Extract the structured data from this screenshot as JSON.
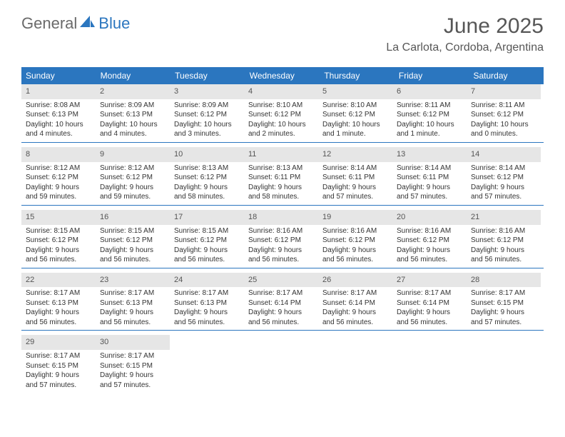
{
  "logo": {
    "part1": "General",
    "part2": "Blue"
  },
  "title": "June 2025",
  "location": "La Carlota, Cordoba, Argentina",
  "colors": {
    "header_bg": "#2b76bf",
    "daynum_bg": "#e6e6e6",
    "text": "#333333",
    "title_text": "#575757"
  },
  "day_labels": [
    "Sunday",
    "Monday",
    "Tuesday",
    "Wednesday",
    "Thursday",
    "Friday",
    "Saturday"
  ],
  "labels": {
    "sunrise": "Sunrise:",
    "sunset": "Sunset:",
    "daylight": "Daylight:"
  },
  "days": [
    {
      "n": "1",
      "sr": "8:08 AM",
      "ss": "6:13 PM",
      "dl1": "10 hours",
      "dl2": "and 4 minutes."
    },
    {
      "n": "2",
      "sr": "8:09 AM",
      "ss": "6:13 PM",
      "dl1": "10 hours",
      "dl2": "and 4 minutes."
    },
    {
      "n": "3",
      "sr": "8:09 AM",
      "ss": "6:12 PM",
      "dl1": "10 hours",
      "dl2": "and 3 minutes."
    },
    {
      "n": "4",
      "sr": "8:10 AM",
      "ss": "6:12 PM",
      "dl1": "10 hours",
      "dl2": "and 2 minutes."
    },
    {
      "n": "5",
      "sr": "8:10 AM",
      "ss": "6:12 PM",
      "dl1": "10 hours",
      "dl2": "and 1 minute."
    },
    {
      "n": "6",
      "sr": "8:11 AM",
      "ss": "6:12 PM",
      "dl1": "10 hours",
      "dl2": "and 1 minute."
    },
    {
      "n": "7",
      "sr": "8:11 AM",
      "ss": "6:12 PM",
      "dl1": "10 hours",
      "dl2": "and 0 minutes."
    },
    {
      "n": "8",
      "sr": "8:12 AM",
      "ss": "6:12 PM",
      "dl1": "9 hours",
      "dl2": "and 59 minutes."
    },
    {
      "n": "9",
      "sr": "8:12 AM",
      "ss": "6:12 PM",
      "dl1": "9 hours",
      "dl2": "and 59 minutes."
    },
    {
      "n": "10",
      "sr": "8:13 AM",
      "ss": "6:12 PM",
      "dl1": "9 hours",
      "dl2": "and 58 minutes."
    },
    {
      "n": "11",
      "sr": "8:13 AM",
      "ss": "6:11 PM",
      "dl1": "9 hours",
      "dl2": "and 58 minutes."
    },
    {
      "n": "12",
      "sr": "8:14 AM",
      "ss": "6:11 PM",
      "dl1": "9 hours",
      "dl2": "and 57 minutes."
    },
    {
      "n": "13",
      "sr": "8:14 AM",
      "ss": "6:11 PM",
      "dl1": "9 hours",
      "dl2": "and 57 minutes."
    },
    {
      "n": "14",
      "sr": "8:14 AM",
      "ss": "6:12 PM",
      "dl1": "9 hours",
      "dl2": "and 57 minutes."
    },
    {
      "n": "15",
      "sr": "8:15 AM",
      "ss": "6:12 PM",
      "dl1": "9 hours",
      "dl2": "and 56 minutes."
    },
    {
      "n": "16",
      "sr": "8:15 AM",
      "ss": "6:12 PM",
      "dl1": "9 hours",
      "dl2": "and 56 minutes."
    },
    {
      "n": "17",
      "sr": "8:15 AM",
      "ss": "6:12 PM",
      "dl1": "9 hours",
      "dl2": "and 56 minutes."
    },
    {
      "n": "18",
      "sr": "8:16 AM",
      "ss": "6:12 PM",
      "dl1": "9 hours",
      "dl2": "and 56 minutes."
    },
    {
      "n": "19",
      "sr": "8:16 AM",
      "ss": "6:12 PM",
      "dl1": "9 hours",
      "dl2": "and 56 minutes."
    },
    {
      "n": "20",
      "sr": "8:16 AM",
      "ss": "6:12 PM",
      "dl1": "9 hours",
      "dl2": "and 56 minutes."
    },
    {
      "n": "21",
      "sr": "8:16 AM",
      "ss": "6:12 PM",
      "dl1": "9 hours",
      "dl2": "and 56 minutes."
    },
    {
      "n": "22",
      "sr": "8:17 AM",
      "ss": "6:13 PM",
      "dl1": "9 hours",
      "dl2": "and 56 minutes."
    },
    {
      "n": "23",
      "sr": "8:17 AM",
      "ss": "6:13 PM",
      "dl1": "9 hours",
      "dl2": "and 56 minutes."
    },
    {
      "n": "24",
      "sr": "8:17 AM",
      "ss": "6:13 PM",
      "dl1": "9 hours",
      "dl2": "and 56 minutes."
    },
    {
      "n": "25",
      "sr": "8:17 AM",
      "ss": "6:14 PM",
      "dl1": "9 hours",
      "dl2": "and 56 minutes."
    },
    {
      "n": "26",
      "sr": "8:17 AM",
      "ss": "6:14 PM",
      "dl1": "9 hours",
      "dl2": "and 56 minutes."
    },
    {
      "n": "27",
      "sr": "8:17 AM",
      "ss": "6:14 PM",
      "dl1": "9 hours",
      "dl2": "and 56 minutes."
    },
    {
      "n": "28",
      "sr": "8:17 AM",
      "ss": "6:15 PM",
      "dl1": "9 hours",
      "dl2": "and 57 minutes."
    },
    {
      "n": "29",
      "sr": "8:17 AM",
      "ss": "6:15 PM",
      "dl1": "9 hours",
      "dl2": "and 57 minutes."
    },
    {
      "n": "30",
      "sr": "8:17 AM",
      "ss": "6:15 PM",
      "dl1": "9 hours",
      "dl2": "and 57 minutes."
    }
  ]
}
